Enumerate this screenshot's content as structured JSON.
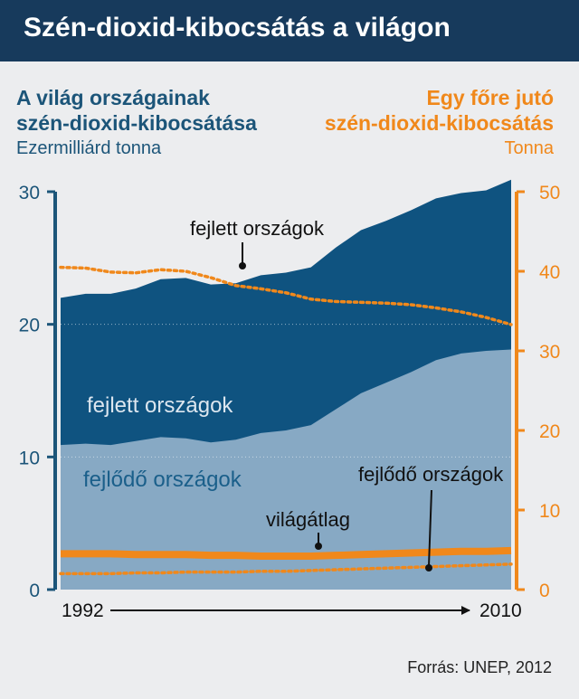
{
  "header": {
    "title": "Szén-dioxid-kibocsátás a világon"
  },
  "left_title": {
    "line1": "A világ országainak",
    "line2": "szén-dioxid-kibocsátása",
    "unit": "Ezermilliárd tonna"
  },
  "right_title": {
    "line1": "Egy főre jutó",
    "line2": "szén-dioxid-kibocsátás",
    "unit": "Tonna"
  },
  "source": "Forrás: UNEP, 2012",
  "colors": {
    "developed_area": "#0f5380",
    "developing_area": "#87a9c4",
    "accent": "#f0881b",
    "header_bg": "#173a5c",
    "left_axis": "#1c5579"
  },
  "chart_data": {
    "type": "area",
    "x": [
      1992,
      1993,
      1994,
      1995,
      1996,
      1997,
      1998,
      1999,
      2000,
      2001,
      2002,
      2003,
      2004,
      2005,
      2006,
      2007,
      2008,
      2009,
      2010
    ],
    "x_tick_labels": [
      "1992",
      "2010"
    ],
    "left_axis": {
      "label": "Ezermilliárd tonna",
      "ticks": [
        0,
        10,
        20,
        30
      ],
      "range": [
        0,
        30
      ]
    },
    "right_axis": {
      "label": "Tonna",
      "ticks": [
        0,
        10,
        20,
        30,
        40,
        50
      ],
      "range": [
        0,
        50
      ]
    },
    "stacked_areas": [
      {
        "name": "fejlődő országok",
        "axis": "left",
        "values": [
          10.9,
          11.0,
          10.9,
          11.2,
          11.5,
          11.4,
          11.1,
          11.3,
          11.8,
          12.0,
          12.4,
          13.6,
          14.8,
          15.6,
          16.4,
          17.3,
          17.8,
          18.0,
          18.1
        ]
      },
      {
        "name": "fejlett országok",
        "axis": "left",
        "values": [
          22.0,
          22.3,
          22.3,
          22.7,
          23.4,
          23.5,
          23.0,
          23.1,
          23.7,
          23.9,
          24.3,
          25.8,
          27.1,
          27.8,
          28.6,
          29.5,
          29.9,
          30.1,
          30.9
        ]
      }
    ],
    "lines": [
      {
        "name": "fejlett országok",
        "axis": "right",
        "style": "dotted",
        "values": [
          40.5,
          40.4,
          39.9,
          39.8,
          40.2,
          40.0,
          39.2,
          38.2,
          37.8,
          37.3,
          36.5,
          36.2,
          36.1,
          36.0,
          35.8,
          35.4,
          34.9,
          34.2,
          33.3
        ]
      },
      {
        "name": "világátlag",
        "axis": "right",
        "style": "solid",
        "values": [
          4.5,
          4.5,
          4.5,
          4.4,
          4.4,
          4.4,
          4.3,
          4.3,
          4.2,
          4.2,
          4.2,
          4.3,
          4.4,
          4.5,
          4.6,
          4.7,
          4.8,
          4.8,
          4.9
        ]
      },
      {
        "name": "fejlődő országok",
        "axis": "right",
        "style": "dotted",
        "values": [
          2.0,
          2.0,
          2.0,
          2.1,
          2.1,
          2.2,
          2.2,
          2.2,
          2.3,
          2.3,
          2.4,
          2.5,
          2.6,
          2.7,
          2.8,
          2.9,
          3.0,
          3.1,
          3.2
        ]
      }
    ],
    "annotations": [
      {
        "text": "fejlett országok",
        "target": "fejlett országok line",
        "leader": true
      },
      {
        "text": "fejlett országok",
        "target": "fejlett országok area",
        "leader": false
      },
      {
        "text": "fejlődő országok",
        "target": "fejlődő országok area",
        "leader": false
      },
      {
        "text": "világátlag",
        "target": "világátlag line",
        "leader": true
      },
      {
        "text": "fejlődő országok",
        "target": "fejlődő országok line",
        "leader": true
      }
    ],
    "grid": true
  }
}
